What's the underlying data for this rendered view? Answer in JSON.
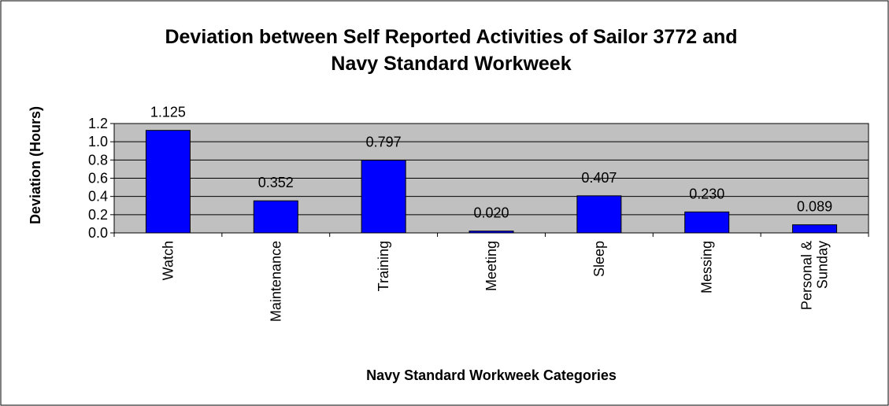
{
  "chart_data": {
    "type": "bar",
    "title": [
      "Deviation between Self Reported Activities of Sailor 3772 and",
      "Navy Standard Workweek"
    ],
    "xlabel": "Navy Standard Workweek Categories",
    "ylabel": "Deviation (Hours)",
    "categories": [
      [
        "Watch"
      ],
      [
        "Maintenance"
      ],
      [
        "Training"
      ],
      [
        "Meeting"
      ],
      [
        "Sleep"
      ],
      [
        "Messing"
      ],
      [
        "Personal &",
        "Sunday"
      ]
    ],
    "values": [
      1.125,
      0.352,
      0.797,
      0.02,
      0.407,
      0.23,
      0.089
    ],
    "data_labels": [
      "1.125",
      "0.352",
      "0.797",
      "0.020",
      "0.407",
      "0.230",
      "0.089"
    ],
    "ylim": [
      0,
      1.2
    ],
    "yticks": [
      "0.0",
      "0.2",
      "0.4",
      "0.6",
      "0.8",
      "1.0",
      "1.2"
    ],
    "grid": true,
    "legend": "none",
    "colors": {
      "bar": "#0000FF",
      "plot_background": "#C0C0C0",
      "gridline": "#000000",
      "border": "#000000"
    }
  }
}
